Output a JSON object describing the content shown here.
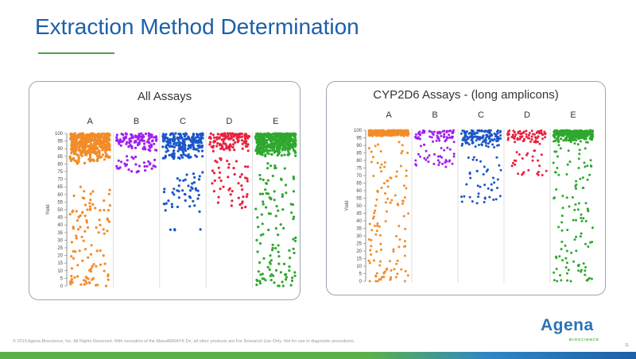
{
  "slide": {
    "title": "Extraction Method Determination",
    "footer": "© 2019 Agena Bioscience, Inc. All Rights Reserved. With exception of the MassARRAY® Dx, all other products are For Research Use Only. Not for use in diagnostic procedures.",
    "page_number": "11",
    "logo": {
      "word": "Agena",
      "sub": "BIOSCIENCE"
    },
    "colors": {
      "title": "#1d5fa8",
      "accent_green": "#4aa642",
      "accent_blue": "#2a73b8"
    }
  },
  "chart_data": [
    {
      "type": "scatter",
      "title": "All Assays",
      "ylabel": "Yield",
      "xlabel": "",
      "ylim": [
        0,
        100
      ],
      "yticks": [
        0,
        5,
        10,
        15,
        20,
        25,
        30,
        35,
        40,
        45,
        50,
        55,
        60,
        65,
        70,
        75,
        80,
        85,
        90,
        95,
        100
      ],
      "categories": [
        "A",
        "B",
        "C",
        "D",
        "E"
      ],
      "series": [
        {
          "category": "A",
          "color": "#f28c28",
          "dense_min": 80,
          "count": 480,
          "points": [
            64,
            58,
            55,
            52,
            50,
            47,
            44,
            41,
            38,
            35,
            30,
            25,
            20,
            15,
            12,
            8,
            5,
            3,
            2,
            1
          ]
        },
        {
          "category": "B",
          "color": "#a020f0",
          "dense_min": 88,
          "count": 110,
          "points": [
            84,
            82,
            80,
            78,
            77,
            76
          ]
        },
        {
          "category": "C",
          "color": "#1a56c8",
          "dense_min": 82,
          "count": 220,
          "points": [
            72,
            68,
            65,
            62,
            60,
            58,
            55,
            52,
            50,
            38
          ]
        },
        {
          "category": "D",
          "color": "#e8233f",
          "dense_min": 88,
          "count": 130,
          "points": [
            82,
            80,
            76,
            72,
            68,
            65,
            60,
            56,
            52
          ]
        },
        {
          "category": "E",
          "color": "#2ea82e",
          "dense_min": 85,
          "count": 460,
          "points": [
            78,
            72,
            68,
            62,
            58,
            55,
            50,
            45,
            40,
            35,
            30,
            25,
            20,
            16,
            12,
            9,
            7,
            5,
            3,
            2,
            1
          ]
        }
      ]
    },
    {
      "type": "scatter",
      "title": "CYP2D6 Assays - (long amplicons)",
      "ylabel": "Yield",
      "xlabel": "",
      "ylim": [
        0,
        100
      ],
      "yticks": [
        0,
        5,
        10,
        15,
        20,
        25,
        30,
        35,
        40,
        45,
        50,
        55,
        60,
        65,
        70,
        75,
        80,
        85,
        90,
        95,
        100
      ],
      "categories": [
        "A",
        "B",
        "C",
        "D",
        "E"
      ],
      "series": [
        {
          "category": "A",
          "color": "#f28c28",
          "dense_min": 96,
          "count": 420,
          "points": [
            90,
            85,
            80,
            75,
            70,
            65,
            60,
            55,
            50,
            45,
            40,
            35,
            30,
            25,
            20,
            15,
            10,
            7,
            5,
            3,
            2,
            1
          ]
        },
        {
          "category": "B",
          "color": "#a020f0",
          "dense_min": 92,
          "count": 70,
          "points": [
            88,
            85,
            82,
            80,
            78,
            77
          ]
        },
        {
          "category": "C",
          "color": "#1a56c8",
          "dense_min": 88,
          "count": 150,
          "points": [
            80,
            75,
            70,
            66,
            62,
            58,
            56,
            54
          ]
        },
        {
          "category": "D",
          "color": "#e8233f",
          "dense_min": 90,
          "count": 80,
          "points": [
            86,
            82,
            78,
            74,
            70
          ]
        },
        {
          "category": "E",
          "color": "#2ea82e",
          "dense_min": 92,
          "count": 300,
          "points": [
            90,
            85,
            80,
            75,
            70,
            65,
            60,
            55,
            50,
            45,
            40,
            35,
            30,
            25,
            20,
            15,
            12,
            9,
            6,
            3,
            2
          ]
        }
      ]
    }
  ]
}
